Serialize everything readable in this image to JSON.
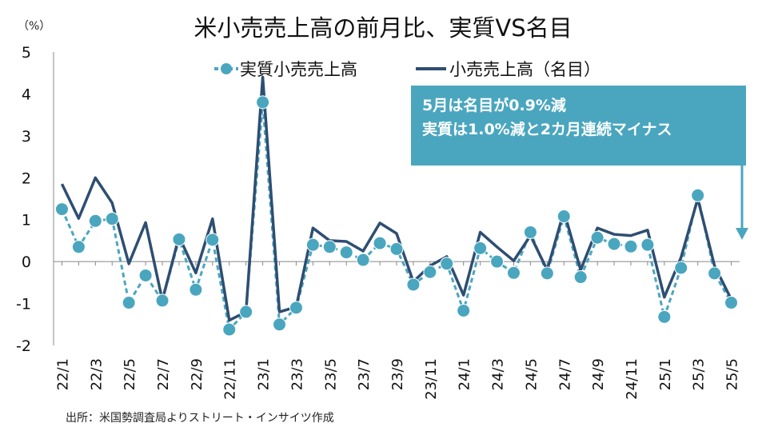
{
  "chart_data": {
    "type": "line",
    "title": "米小売売上高の前月比、実質VS名目",
    "unit_label": "（%）",
    "source": "出所：米国勢調査局よりストリート・インサイツ作成",
    "callout": {
      "line1": "5月は名目が0.9%減",
      "line2": "実質は1.0%減と2カ月連続マイナス"
    },
    "ylim": [
      -2,
      5
    ],
    "yticks": [
      "5",
      "4",
      "3",
      "2",
      "1",
      "0",
      "-1",
      "-2"
    ],
    "grid": false,
    "legend": "top",
    "x": [
      "22/1",
      "22/2",
      "22/3",
      "22/4",
      "22/5",
      "22/6",
      "22/7",
      "22/8",
      "22/9",
      "22/10",
      "22/11",
      "22/12",
      "23/1",
      "23/2",
      "23/3",
      "23/4",
      "23/5",
      "23/6",
      "23/7",
      "23/8",
      "23/9",
      "23/10",
      "23/11",
      "23/12",
      "24/1",
      "24/2",
      "24/3",
      "24/4",
      "24/5",
      "24/6",
      "24/7",
      "24/8",
      "24/9",
      "24/10",
      "24/11",
      "24/12",
      "25/1",
      "25/2",
      "25/3",
      "25/4",
      "25/5"
    ],
    "x_tick_labels": [
      "22/1",
      "",
      "22/3",
      "",
      "22/5",
      "",
      "22/7",
      "",
      "22/9",
      "",
      "22/11",
      "",
      "23/1",
      "",
      "23/3",
      "",
      "23/5",
      "",
      "23/7",
      "",
      "23/9",
      "",
      "23/11",
      "",
      "24/1",
      "",
      "24/3",
      "",
      "24/5",
      "",
      "24/7",
      "",
      "24/9",
      "",
      "24/11",
      "",
      "25/1",
      "",
      "25/3",
      "",
      "25/5"
    ],
    "series": [
      {
        "name": "実質小売売上高",
        "color": "#4aa6bf",
        "values": [
          1.25,
          0.35,
          0.97,
          1.02,
          -0.98,
          -0.33,
          -0.93,
          0.53,
          -0.67,
          0.52,
          -1.62,
          -1.2,
          3.8,
          -1.5,
          -1.1,
          0.4,
          0.35,
          0.22,
          0.04,
          0.44,
          0.3,
          -0.55,
          -0.25,
          -0.05,
          -1.17,
          0.32,
          0.0,
          -0.27,
          0.7,
          -0.28,
          1.08,
          -0.37,
          0.57,
          0.42,
          0.36,
          0.4,
          -1.32,
          -0.15,
          1.58,
          -0.28,
          -0.98
        ]
      },
      {
        "name": "小売売上高（名目）",
        "color": "#2e4e72",
        "values": [
          1.85,
          1.03,
          2.0,
          1.4,
          -0.05,
          0.93,
          -0.92,
          0.6,
          -0.27,
          1.02,
          -1.4,
          -1.2,
          4.4,
          -1.2,
          -1.08,
          0.8,
          0.5,
          0.48,
          0.25,
          0.92,
          0.67,
          -0.48,
          -0.1,
          0.12,
          -0.8,
          0.7,
          0.35,
          0.02,
          0.62,
          -0.2,
          1.2,
          -0.2,
          0.8,
          0.65,
          0.62,
          0.75,
          -0.85,
          0.1,
          1.5,
          -0.1,
          -0.9
        ]
      }
    ]
  }
}
